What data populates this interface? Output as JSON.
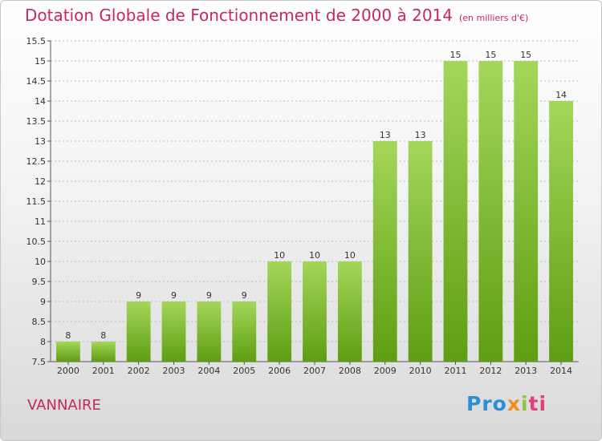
{
  "header": {
    "title": "Dotation Globale de Fonctionnement de 2000 à 2014",
    "unit": "(en milliers d'€)"
  },
  "commune": "VANNAIRE",
  "logo": {
    "text": "Proxiti",
    "parts": [
      "Pro",
      "x",
      "i",
      "ti"
    ]
  },
  "colors": {
    "title": "#c8285a",
    "bar_light": "#a4d65a",
    "bar_dark": "#5e9e12",
    "grid": "#bbbbbb"
  },
  "chart_data": {
    "type": "bar",
    "title": "Dotation Globale de Fonctionnement de 2000 à 2014",
    "subtitle": "(en milliers d'€)",
    "categories": [
      "2000",
      "2001",
      "2002",
      "2003",
      "2004",
      "2005",
      "2006",
      "2007",
      "2008",
      "2009",
      "2010",
      "2011",
      "2012",
      "2013",
      "2014"
    ],
    "values": [
      8,
      8,
      9,
      9,
      9,
      9,
      10,
      10,
      10,
      13,
      13,
      15,
      15,
      15,
      14
    ],
    "data_labels": [
      "8",
      "8",
      "9",
      "9",
      "9",
      "9",
      "10",
      "10",
      "10",
      "13",
      "13",
      "15",
      "15",
      "15",
      "14"
    ],
    "ylim": [
      7.5,
      15.5
    ],
    "yticks": [
      7.5,
      8,
      8.5,
      9,
      9.5,
      10,
      10.5,
      11,
      11.5,
      12,
      12.5,
      13,
      13.5,
      14,
      14.5,
      15,
      15.5
    ],
    "ytick_labels": [
      "7.5",
      "8",
      "8.5",
      "9",
      "9.5",
      "10",
      "10.5",
      "11",
      "11.5",
      "12",
      "12.5",
      "13",
      "13.5",
      "14",
      "14.5",
      "15",
      "15.5"
    ],
    "grid": "horizontal dashed",
    "legend": "none"
  }
}
